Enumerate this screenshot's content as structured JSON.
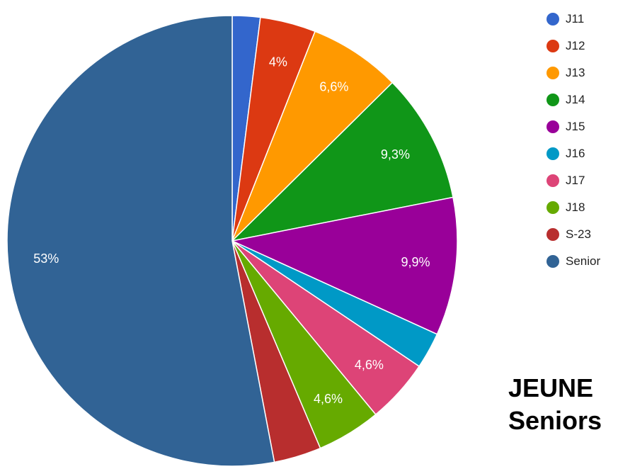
{
  "chart_data": {
    "type": "pie",
    "slices": [
      {
        "name": "J11",
        "value": 2.0,
        "label": "",
        "color": "#3366cc"
      },
      {
        "name": "J12",
        "value": 4.0,
        "label": "4%",
        "color": "#dc3912"
      },
      {
        "name": "J13",
        "value": 6.6,
        "label": "6,6%",
        "color": "#ff9900"
      },
      {
        "name": "J14",
        "value": 9.3,
        "label": "9,3%",
        "color": "#109618"
      },
      {
        "name": "J15",
        "value": 9.9,
        "label": "9,9%",
        "color": "#990099"
      },
      {
        "name": "J16",
        "value": 2.6,
        "label": "",
        "color": "#0099c6"
      },
      {
        "name": "J17",
        "value": 4.6,
        "label": "4,6%",
        "color": "#dd4477"
      },
      {
        "name": "J18",
        "value": 4.6,
        "label": "4,6%",
        "color": "#66aa00"
      },
      {
        "name": "S-23",
        "value": 3.4,
        "label": "",
        "color": "#b82e2e"
      },
      {
        "name": "Senior",
        "value": 53.0,
        "label": "53%",
        "color": "#316395"
      }
    ],
    "legend": "right"
  },
  "title_lines": [
    "JEUNE",
    "Seniors"
  ]
}
